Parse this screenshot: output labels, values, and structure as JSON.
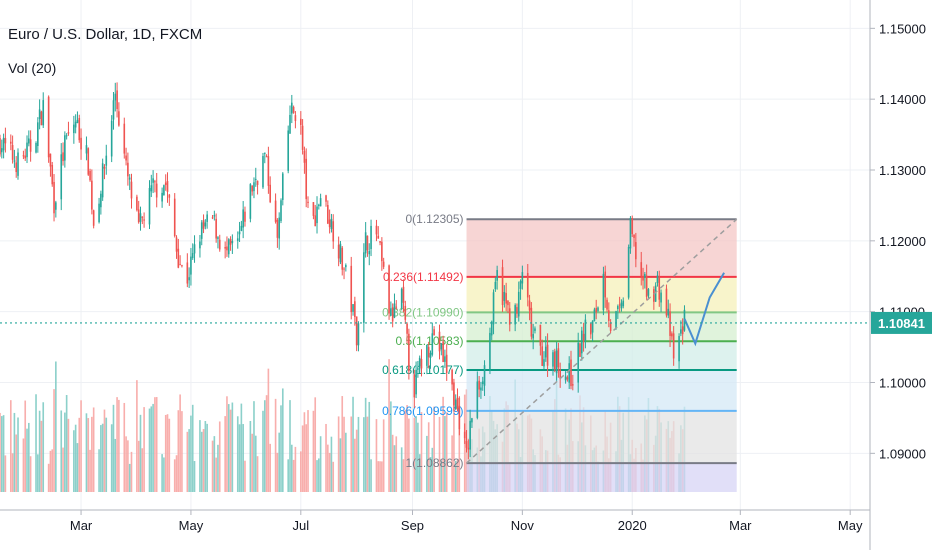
{
  "header": {
    "title": "Euro / U.S. Dollar, 1D, FXCM",
    "indicator": "Vol (20)"
  },
  "colors": {
    "up": "#26a69a",
    "down": "#ef5350",
    "vol_up": "#80cbc4",
    "vol_down": "#f7a5a3",
    "price_line": "#26a69a",
    "projection": "#4a8fd1",
    "trend": "#9e9e9e"
  },
  "chart_data": {
    "type": "candlestick",
    "instrument": "EURUSD",
    "timeframe": "1D",
    "ylim": [
      1.082,
      1.154
    ],
    "y_ticks": [
      "1.09000",
      "1.10000",
      "1.11000",
      "1.12000",
      "1.13000",
      "1.14000",
      "1.15000"
    ],
    "x_ticks": [
      "Mar",
      "May",
      "Jul",
      "Sep",
      "Nov",
      "2020",
      "Mar",
      "May"
    ],
    "x_tick_dates": [
      "2019-03-01",
      "2019-05-01",
      "2019-07-01",
      "2019-09-01",
      "2019-11-01",
      "2020-01-01",
      "2020-03-01",
      "2020-05-01"
    ],
    "x_range": [
      "2019-01-15",
      "2020-05-12"
    ],
    "last_price": "1.10841",
    "last_price_value": 1.10841,
    "close_path": [
      [
        "2019-01-15",
        1.134
      ],
      [
        "2019-01-25",
        1.131
      ],
      [
        "2019-02-02",
        1.1335
      ],
      [
        "2019-02-08",
        1.139
      ],
      [
        "2019-02-14",
        1.1255
      ],
      [
        "2019-02-20",
        1.1335
      ],
      [
        "2019-02-26",
        1.137
      ],
      [
        "2019-03-05",
        1.131
      ],
      [
        "2019-03-08",
        1.1225
      ],
      [
        "2019-03-14",
        1.1305
      ],
      [
        "2019-03-20",
        1.141
      ],
      [
        "2019-03-26",
        1.13
      ],
      [
        "2019-04-02",
        1.1215
      ],
      [
        "2019-04-10",
        1.1275
      ],
      [
        "2019-04-17",
        1.128
      ],
      [
        "2019-04-23",
        1.119
      ],
      [
        "2019-04-28",
        1.114
      ],
      [
        "2019-05-06",
        1.121
      ],
      [
        "2019-05-13",
        1.123
      ],
      [
        "2019-05-20",
        1.118
      ],
      [
        "2019-05-27",
        1.1195
      ],
      [
        "2019-06-03",
        1.127
      ],
      [
        "2019-06-11",
        1.132
      ],
      [
        "2019-06-18",
        1.12
      ],
      [
        "2019-06-25",
        1.138
      ],
      [
        "2019-06-30",
        1.1385
      ],
      [
        "2019-07-06",
        1.121
      ],
      [
        "2019-07-12",
        1.1265
      ],
      [
        "2019-07-20",
        1.121
      ],
      [
        "2019-07-27",
        1.114
      ],
      [
        "2019-08-01",
        1.107
      ],
      [
        "2019-08-06",
        1.12
      ],
      [
        "2019-08-12",
        1.121
      ],
      [
        "2019-08-20",
        1.109
      ],
      [
        "2019-08-26",
        1.112
      ],
      [
        "2019-09-01",
        1.0985
      ],
      [
        "2019-09-06",
        1.103
      ],
      [
        "2019-09-13",
        1.107
      ],
      [
        "2019-09-20",
        1.102
      ],
      [
        "2019-09-27",
        1.095
      ],
      [
        "2019-10-01",
        1.0895
      ],
      [
        "2019-10-05",
        1.0975
      ],
      [
        "2019-10-12",
        1.103
      ],
      [
        "2019-10-18",
        1.115
      ],
      [
        "2019-10-24",
        1.11
      ],
      [
        "2019-10-29",
        1.1095
      ],
      [
        "2019-11-01",
        1.116
      ],
      [
        "2019-11-06",
        1.107
      ],
      [
        "2019-11-12",
        1.104
      ],
      [
        "2019-11-18",
        1.104
      ],
      [
        "2019-11-25",
        1.101
      ],
      [
        "2019-11-29",
        1.101
      ],
      [
        "2019-12-05",
        1.107
      ],
      [
        "2019-12-10",
        1.108
      ],
      [
        "2019-12-16",
        1.115
      ],
      [
        "2019-12-20",
        1.108
      ],
      [
        "2019-12-26",
        1.11
      ],
      [
        "2019-12-31",
        1.1215
      ],
      [
        "2020-01-05",
        1.116
      ],
      [
        "2020-01-10",
        1.112
      ],
      [
        "2020-01-15",
        1.114
      ],
      [
        "2020-01-21",
        1.109
      ],
      [
        "2020-01-24",
        1.103
      ],
      [
        "2020-01-30",
        1.109
      ]
    ],
    "projection_path": [
      [
        "2020-01-30",
        1.109
      ],
      [
        "2020-02-05",
        1.1055
      ],
      [
        "2020-02-13",
        1.112
      ],
      [
        "2020-02-21",
        1.1155
      ]
    ],
    "trend_line": {
      "from": [
        "2019-10-01",
        1.08862
      ],
      "to": [
        "2020-02-28",
        1.12305
      ]
    },
    "fibonacci": {
      "start": "2019-10-01",
      "end": "2020-02-28",
      "levels": [
        {
          "ratio": 0,
          "price": 1.12305,
          "label": "0(1.12305)",
          "line": "#787b86",
          "fill": "#f4c7c5",
          "text": "#787b86"
        },
        {
          "ratio": 0.236,
          "price": 1.11492,
          "label": "0.236(1.11492)",
          "line": "#f23645",
          "fill": "#f6f0b9",
          "text": "#f23645"
        },
        {
          "ratio": 0.382,
          "price": 1.1099,
          "label": "0.382(1.10990)",
          "line": "#81c784",
          "fill": "#d6efd0",
          "text": "#81c784"
        },
        {
          "ratio": 0.5,
          "price": 1.10583,
          "label": "0.5(1.10583)",
          "line": "#4caf50",
          "fill": "#d2ede8",
          "text": "#4caf50"
        },
        {
          "ratio": 0.618,
          "price": 1.10177,
          "label": "0.618(1.10177)",
          "line": "#089981",
          "fill": "#d4e8f5",
          "text": "#089981"
        },
        {
          "ratio": 0.786,
          "price": 1.09599,
          "label": "0.786(1.09599)",
          "line": "#64b5f6",
          "fill": "#e3e3e3",
          "text": "#2196f3"
        },
        {
          "ratio": 1,
          "price": 1.08862,
          "label": "1(1.08862)",
          "line": "#787b86",
          "fill": "#d7d4f5",
          "text": "#787b86"
        }
      ]
    }
  }
}
